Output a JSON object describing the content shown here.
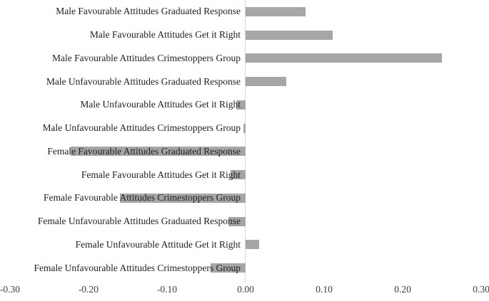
{
  "chart_data": {
    "type": "bar",
    "orientation": "horizontal",
    "title": "",
    "xlabel": "",
    "ylabel": "",
    "categories": [
      "Male Favourable Attitudes Graduated Response",
      "Male Favourable Attitudes Get it Right",
      "Male Favourable Attitudes Crimestoppers Group",
      "Male Unfavourable Attitudes Graduated Response",
      "Male Unfavourable Attitudes Get it Right",
      "Male Unfavourable Attitudes Crimestoppers Group",
      "Female Favourable Attitudes Graduated Response",
      "Female Favourable Attitudes Get it Right",
      "Female Favourable Attitudes Crimestoppers Group",
      "Female Unfavourable Attitudes Graduated Response",
      "Female Unfavourable Attitude Get it Right",
      "Female Unfavourable Attitudes Crimestoppers Group"
    ],
    "values": [
      0.076,
      0.111,
      0.25,
      0.052,
      -0.012,
      -0.003,
      -0.223,
      -0.019,
      -0.16,
      -0.022,
      0.017,
      -0.045
    ],
    "xlim": [
      -0.3,
      0.3
    ],
    "x_tick_labels": [
      "-0.30",
      "-0.20",
      "-0.10",
      "0.00",
      "0.10",
      "0.20",
      "0.30"
    ],
    "x_tick_values": [
      -0.3,
      -0.2,
      -0.1,
      0.0,
      0.1,
      0.2,
      0.3
    ],
    "grid": false,
    "legend": false,
    "bar_color": "#a6a6a6",
    "axis_line_color": "#d6d6d6",
    "category_label_color": "#1f1f1f",
    "tick_label_color": "#3d3d3d",
    "background_color": "#ffffff"
  }
}
